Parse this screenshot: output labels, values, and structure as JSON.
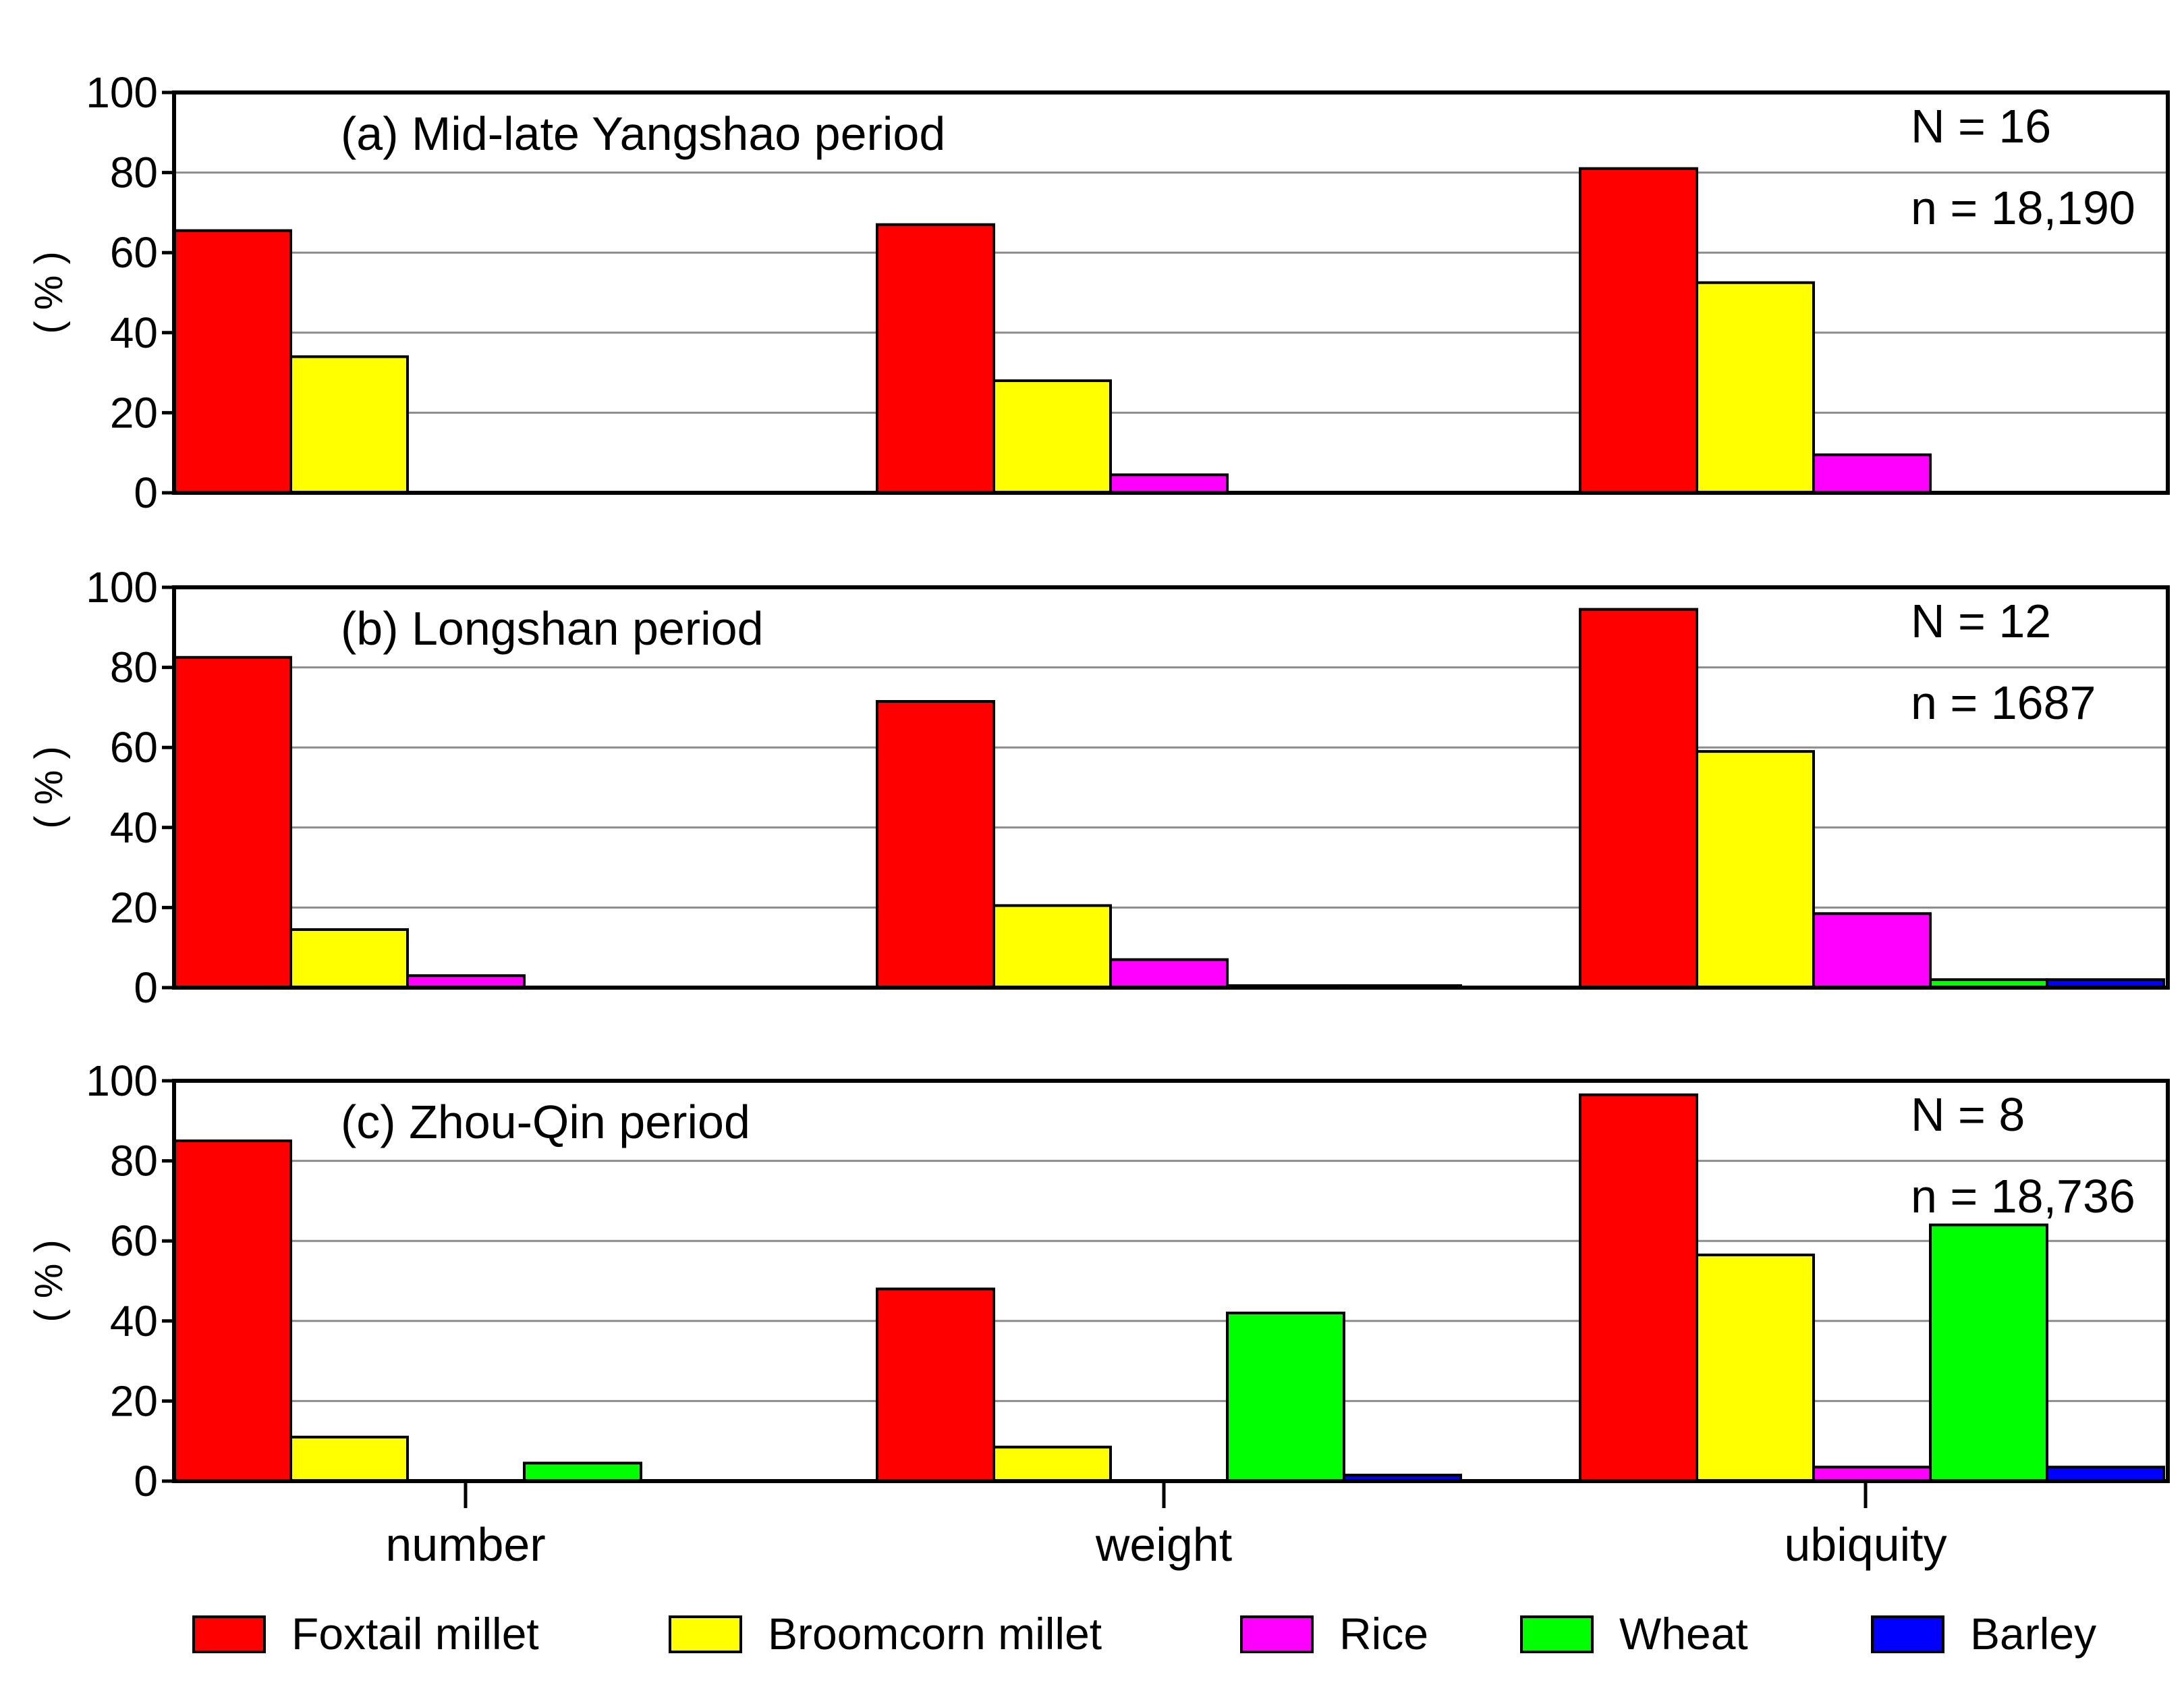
{
  "chart_data": {
    "type": "bar",
    "categories": [
      "number",
      "weight",
      "ubiquity"
    ],
    "series_names": [
      "Foxtail millet",
      "Broomcorn millet",
      "Rice",
      "Wheat",
      "Barley"
    ],
    "colors": [
      "#ff0000",
      "#ffff00",
      "#ff00ff",
      "#00ff00",
      "#0000ff"
    ],
    "ylabel": "( % )",
    "ylim": [
      0,
      100
    ],
    "yticks": [
      "0",
      "20",
      "40",
      "60",
      "80",
      "100"
    ],
    "grid": true,
    "legend": "bottom",
    "panels": [
      {
        "title": "(a) Mid-late Yangshao period",
        "N": "N = 16",
        "n": "n = 18,190",
        "values": [
          [
            65.5,
            34.0,
            0,
            0,
            0
          ],
          [
            67.0,
            28.0,
            4.5,
            0,
            0
          ],
          [
            81.0,
            52.5,
            9.5,
            0,
            0
          ]
        ]
      },
      {
        "title": "(b) Longshan period",
        "N": "N = 12",
        "n": "n = 1687",
        "values": [
          [
            82.5,
            14.5,
            3.0,
            0,
            0
          ],
          [
            71.5,
            20.5,
            7.0,
            0.5,
            0.5
          ],
          [
            94.5,
            59.0,
            18.5,
            2.0,
            2.0
          ]
        ]
      },
      {
        "title": "(c) Zhou-Qin period",
        "N": "N = 8",
        "n": "n = 18,736",
        "values": [
          [
            85.0,
            11.0,
            0,
            4.5,
            0
          ],
          [
            48.0,
            8.5,
            0,
            42.0,
            1.5
          ],
          [
            96.5,
            56.5,
            3.5,
            64.0,
            3.5
          ]
        ]
      }
    ]
  }
}
